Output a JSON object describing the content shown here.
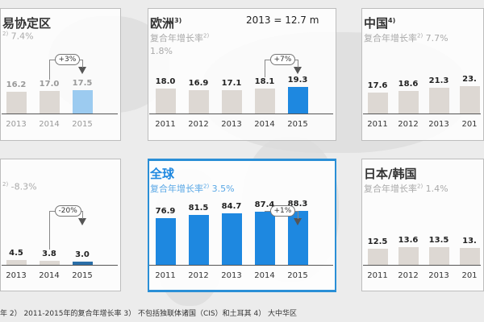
{
  "colors": {
    "highlight": "#1e88e0",
    "highlight_light": "#9ccbf0",
    "bar": "#ddd8d3",
    "global_border": "#2a8fd6"
  },
  "chart_data": [
    {
      "type": "bar",
      "title": "易协定区",
      "cagr_label": "2)",
      "cagr": "7.4%",
      "categories": [
        "2013",
        "2014",
        "2015"
      ],
      "values": [
        16.2,
        17.0,
        17.5
      ],
      "change": "+3%"
    },
    {
      "type": "bar",
      "title": "欧洲",
      "title_note": "3)",
      "subtitle": "2013 = 12.7 m",
      "cagr_label": "复合年增长率",
      "cagr_note": "2)",
      "cagr": "1.8%",
      "categories": [
        "2011",
        "2012",
        "2013",
        "2014",
        "2015"
      ],
      "values": [
        18.0,
        16.9,
        17.1,
        18.1,
        19.3
      ],
      "change": "+7%"
    },
    {
      "type": "bar",
      "title": "中国",
      "title_note": "4)",
      "cagr_label": "复合年增长率",
      "cagr_note": "2)",
      "cagr": "7.7%",
      "categories": [
        "2011",
        "2012",
        "2013",
        "201"
      ],
      "values": [
        17.6,
        18.6,
        21.3,
        23
      ],
      "value_labels": [
        "17.6",
        "18.6",
        "21.3",
        "23."
      ]
    },
    {
      "type": "bar",
      "cagr_label": "2)",
      "cagr": "-8.3%",
      "categories": [
        "2013",
        "2014",
        "2015"
      ],
      "values": [
        4.5,
        3.8,
        3.0
      ],
      "change": "-20%"
    },
    {
      "type": "bar",
      "title": "全球",
      "cagr_label": "复合年增长率",
      "cagr_note": "2)",
      "cagr": "3.5%",
      "categories": [
        "2011",
        "2012",
        "2013",
        "2014",
        "2015"
      ],
      "values": [
        76.9,
        81.5,
        84.7,
        87.4,
        88.3
      ],
      "change": "+1%"
    },
    {
      "type": "bar",
      "title": "日本/韩国",
      "cagr_label": "复合年增长率",
      "cagr_note": "2)",
      "cagr": "1.4%",
      "categories": [
        "2011",
        "2012",
        "2013",
        "201"
      ],
      "values": [
        12.5,
        13.6,
        13.5,
        13
      ],
      "value_labels": [
        "12.5",
        "13.6",
        "13.5",
        "13."
      ]
    }
  ],
  "footnote": "年   2） 2011-2015年的复合年增长率    3） 不包括独联体诸国（CIS）和土耳其    4） 大中华区"
}
